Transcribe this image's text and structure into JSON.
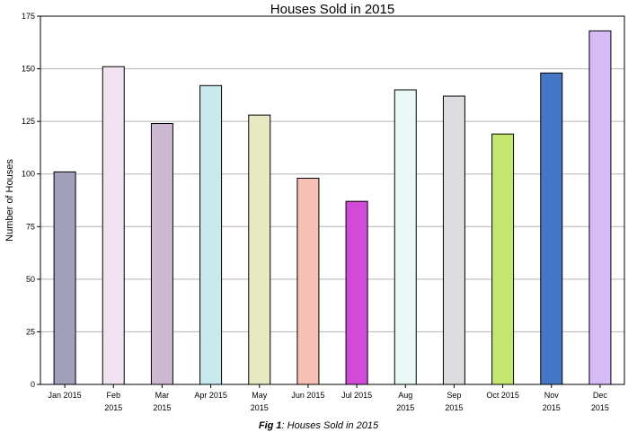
{
  "chart_data": {
    "type": "bar",
    "title": "Houses Sold in 2015",
    "xlabel": "",
    "ylabel": "Number of Houses",
    "ylim": [
      0,
      175
    ],
    "yticks": [
      0,
      25,
      50,
      75,
      100,
      125,
      150,
      175
    ],
    "grid": true,
    "categories": [
      [
        "Jan 2015"
      ],
      [
        "Feb",
        "2015"
      ],
      [
        "Mar",
        "2015"
      ],
      [
        "Apr 2015"
      ],
      [
        "May",
        "2015"
      ],
      [
        "Jun 2015"
      ],
      [
        "Jul 2015"
      ],
      [
        "Aug",
        "2015"
      ],
      [
        "Sep",
        "2015"
      ],
      [
        "Oct 2015"
      ],
      [
        "Nov",
        "2015"
      ],
      [
        "Dec",
        "2015"
      ]
    ],
    "values": [
      101,
      151,
      124,
      142,
      128,
      98,
      87,
      140,
      137,
      119,
      148,
      168
    ],
    "colors": [
      "#a0a0bd",
      "#f2e1f0",
      "#cbb9d2",
      "#c9eaec",
      "#e6e9c1",
      "#f8bfb4",
      "#d24bd8",
      "#e9f7f5",
      "#dcdce1",
      "#c4e66e",
      "#4577c6",
      "#d6bbf7"
    ]
  },
  "caption": {
    "label": "Fig 1",
    "text": ": Houses Sold in 2015"
  }
}
